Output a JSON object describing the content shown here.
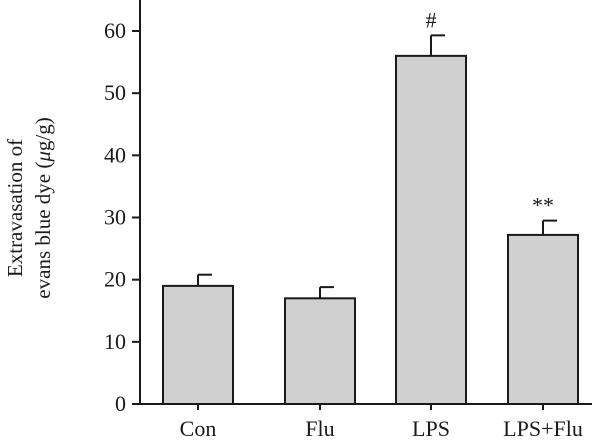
{
  "chart_data": {
    "type": "bar",
    "categories": [
      "Con",
      "Flu",
      "LPS",
      "LPS+Flu"
    ],
    "values": [
      19,
      17,
      56,
      27.2
    ],
    "errors": [
      1.8,
      1.8,
      3.3,
      2.3
    ],
    "annotations": [
      "",
      "",
      "#",
      "**"
    ],
    "ylabel_lines": [
      "Extravasation of",
      "evans blue dye (",
      "μ",
      "g/g)"
    ],
    "ylim": [
      0,
      65
    ],
    "yticks": [
      0,
      10,
      20,
      30,
      40,
      50,
      60
    ],
    "bar_color": "#d0d0d0",
    "edge_color": "#1a1a1a"
  }
}
